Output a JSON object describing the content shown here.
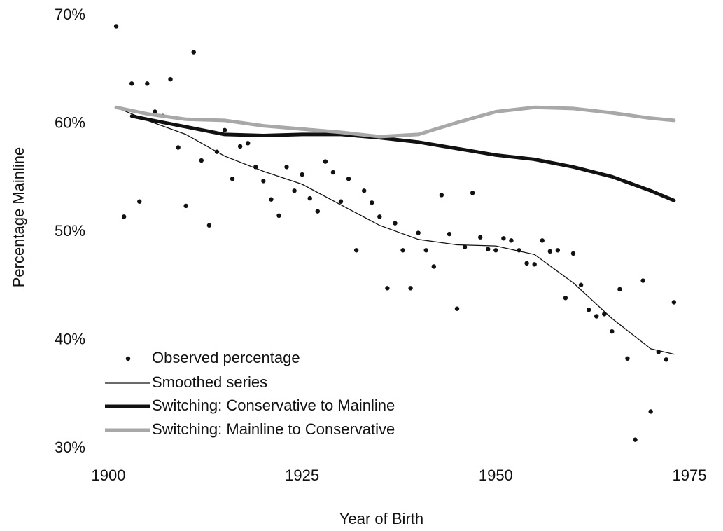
{
  "chart_data": {
    "type": "line",
    "x_label": "Year of Birth",
    "y_label": "Percentage Mainline",
    "xlim": [
      1900,
      1975
    ],
    "xticks": [
      1900,
      1925,
      1950,
      1975
    ],
    "ylim": [
      30,
      70
    ],
    "yticks": [
      {
        "value": 30,
        "label": "30%"
      },
      {
        "value": 40,
        "label": "40%"
      },
      {
        "value": 50,
        "label": "50%"
      },
      {
        "value": 60,
        "label": "60%"
      },
      {
        "value": 70,
        "label": "70%"
      }
    ],
    "legend": "bottom-left",
    "series": [
      {
        "name": "Observed percentage",
        "type": "scatter",
        "color": "#111111",
        "x": [
          1901,
          1902,
          1903,
          1904,
          1905,
          1906,
          1907,
          1908,
          1909,
          1910,
          1911,
          1912,
          1913,
          1914,
          1915,
          1916,
          1917,
          1918,
          1919,
          1920,
          1921,
          1922,
          1923,
          1924,
          1925,
          1926,
          1927,
          1928,
          1929,
          1930,
          1931,
          1932,
          1933,
          1934,
          1935,
          1936,
          1937,
          1938,
          1939,
          1940,
          1941,
          1942,
          1943,
          1944,
          1945,
          1946,
          1947,
          1948,
          1949,
          1950,
          1951,
          1952,
          1953,
          1954,
          1955,
          1956,
          1957,
          1958,
          1959,
          1960,
          1961,
          1962,
          1963,
          1964,
          1965,
          1966,
          1967,
          1968,
          1969,
          1970,
          1971,
          1972,
          1973
        ],
        "values": [
          69.0,
          51.4,
          63.7,
          52.8,
          63.7,
          61.1,
          60.7,
          64.1,
          57.8,
          52.4,
          66.6,
          56.6,
          50.6,
          57.4,
          59.4,
          54.9,
          57.9,
          58.2,
          56.0,
          54.7,
          53.0,
          51.5,
          56.0,
          53.8,
          55.3,
          53.1,
          51.9,
          56.5,
          55.5,
          52.8,
          54.9,
          48.3,
          53.8,
          52.7,
          51.4,
          44.8,
          50.8,
          48.3,
          44.8,
          49.9,
          48.3,
          46.8,
          53.4,
          49.8,
          42.9,
          48.6,
          53.6,
          49.5,
          48.4,
          48.3,
          49.4,
          49.2,
          48.3,
          47.1,
          47.0,
          49.2,
          48.2,
          48.3,
          43.9,
          48.0,
          45.1,
          42.8,
          42.2,
          42.4,
          40.8,
          44.7,
          38.3,
          30.8,
          45.5,
          33.4,
          38.9,
          38.2,
          43.5
        ]
      },
      {
        "name": "Smoothed series",
        "type": "line",
        "color": "#111111",
        "x": [
          1901,
          1905,
          1910,
          1915,
          1920,
          1925,
          1930,
          1935,
          1940,
          1945,
          1950,
          1955,
          1960,
          1965,
          1970,
          1973
        ],
        "values": [
          61.5,
          60.3,
          59.0,
          57.0,
          55.6,
          54.4,
          52.5,
          50.6,
          49.3,
          48.8,
          48.7,
          47.9,
          45.3,
          42.0,
          39.2,
          38.7
        ]
      },
      {
        "name": "Switching: Conservative to Mainline",
        "type": "line",
        "color": "#111111",
        "x": [
          1903,
          1905,
          1910,
          1915,
          1920,
          1925,
          1930,
          1935,
          1940,
          1945,
          1950,
          1955,
          1960,
          1965,
          1970,
          1973
        ],
        "values": [
          60.7,
          60.4,
          59.7,
          59.0,
          58.9,
          59.0,
          59.0,
          58.7,
          58.3,
          57.7,
          57.1,
          56.7,
          56.0,
          55.1,
          53.8,
          52.9
        ]
      },
      {
        "name": "Switching: Mainline to Conservative",
        "type": "line",
        "color": "#a8a8a8",
        "x": [
          1901,
          1905,
          1910,
          1915,
          1920,
          1925,
          1930,
          1935,
          1940,
          1945,
          1950,
          1955,
          1960,
          1965,
          1970,
          1973
        ],
        "values": [
          61.5,
          60.9,
          60.4,
          60.3,
          59.8,
          59.5,
          59.2,
          58.8,
          59.0,
          60.1,
          61.1,
          61.5,
          61.4,
          61.0,
          60.5,
          60.3
        ]
      }
    ]
  }
}
